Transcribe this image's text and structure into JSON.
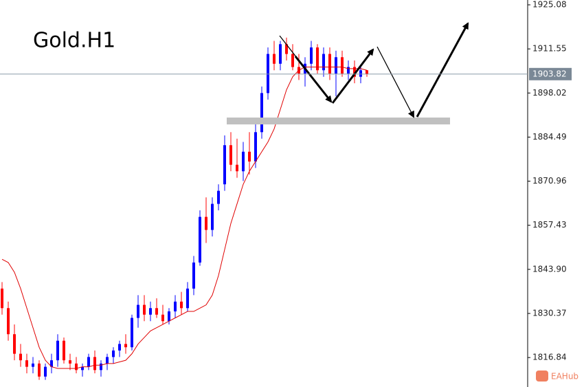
{
  "chart_data": {
    "type": "candlestick",
    "title": "Gold.H1",
    "open": [
      1838,
      1832,
      1824,
      1818,
      1816,
      1814,
      1815,
      1811,
      1814,
      1816,
      1822,
      1816,
      1815,
      1813,
      1814,
      1817,
      1813,
      1815,
      1817,
      1819,
      1821,
      1820,
      1829,
      1833,
      1830,
      1832,
      1830,
      1828,
      1831,
      1834,
      1832,
      1838,
      1846,
      1860,
      1856,
      1864,
      1870,
      1882,
      1876,
      1874,
      1880,
      1877,
      1886,
      1898,
      1910,
      1907,
      1913,
      1910,
      1906,
      1904,
      1907,
      1912,
      1905,
      1910,
      1904,
      1909,
      1904,
      1906,
      1903,
      1905
    ],
    "high": [
      1840,
      1834,
      1827,
      1821,
      1818,
      1817,
      1816,
      1815,
      1818,
      1824,
      1823,
      1818,
      1817,
      1815,
      1818,
      1819,
      1816,
      1818,
      1820,
      1822,
      1824,
      1830,
      1836,
      1836,
      1834,
      1835,
      1833,
      1832,
      1836,
      1837,
      1840,
      1848,
      1862,
      1866,
      1866,
      1870,
      1885,
      1886,
      1884,
      1883,
      1886,
      1889,
      1900,
      1912,
      1914,
      1914,
      1915,
      1913,
      1910,
      1909,
      1914,
      1913,
      1912,
      1912,
      1911,
      1911,
      1908,
      1908,
      1906,
      1905
    ],
    "low": [
      1830,
      1822,
      1816,
      1814,
      1812,
      1812,
      1810,
      1810,
      1812,
      1814,
      1815,
      1813,
      1812,
      1811,
      1813,
      1812,
      1811,
      1813,
      1815,
      1817,
      1818,
      1819,
      1826,
      1828,
      1828,
      1829,
      1827,
      1827,
      1829,
      1830,
      1831,
      1836,
      1845,
      1852,
      1854,
      1862,
      1868,
      1874,
      1872,
      1871,
      1873,
      1875,
      1884,
      1896,
      1905,
      1905,
      1908,
      1905,
      1902,
      1900,
      1905,
      1904,
      1903,
      1902,
      1897,
      1903,
      1902,
      1901,
      1901,
      1903
    ],
    "close": [
      1832,
      1824,
      1818,
      1816,
      1814,
      1815,
      1811,
      1814,
      1816,
      1822,
      1816,
      1815,
      1813,
      1814,
      1817,
      1813,
      1815,
      1817,
      1819,
      1821,
      1820,
      1829,
      1833,
      1830,
      1832,
      1830,
      1828,
      1831,
      1834,
      1832,
      1838,
      1846,
      1860,
      1856,
      1864,
      1868,
      1882,
      1876,
      1874,
      1880,
      1877,
      1886,
      1898,
      1910,
      1907,
      1913,
      1910,
      1906,
      1904,
      1907,
      1912,
      1905,
      1910,
      1904,
      1909,
      1904,
      1906,
      1903,
      1905,
      1903.82
    ],
    "ma": [
      1847,
      1846,
      1843,
      1838,
      1832,
      1826,
      1820,
      1816,
      1814,
      1813.5,
      1813.5,
      1813.5,
      1813.5,
      1814,
      1814,
      1814.5,
      1814.5,
      1815,
      1815,
      1815.5,
      1816,
      1818,
      1821,
      1823,
      1825,
      1826,
      1827,
      1828,
      1829,
      1830,
      1831,
      1831,
      1832,
      1833,
      1836,
      1842,
      1850,
      1858,
      1864,
      1870,
      1874,
      1877,
      1880,
      1883,
      1887,
      1893,
      1899,
      1903,
      1905,
      1906,
      1906,
      1906,
      1906,
      1906,
      1906,
      1906,
      1905.5,
      1905.5,
      1905.5,
      1905
    ],
    "up_color": "#0000ff",
    "down_color": "#ff0000",
    "ma_color": "#e00000",
    "ylim": [
      1807.8,
      1926.56
    ],
    "yticks": [
      1925.08,
      1911.55,
      1898.02,
      1884.49,
      1870.96,
      1857.43,
      {
        "value": 1843.9,
        "label": "1843.90"
      },
      1830.37,
      1816.84
    ],
    "current_price": 1903.82,
    "watermark": "EAHub"
  }
}
